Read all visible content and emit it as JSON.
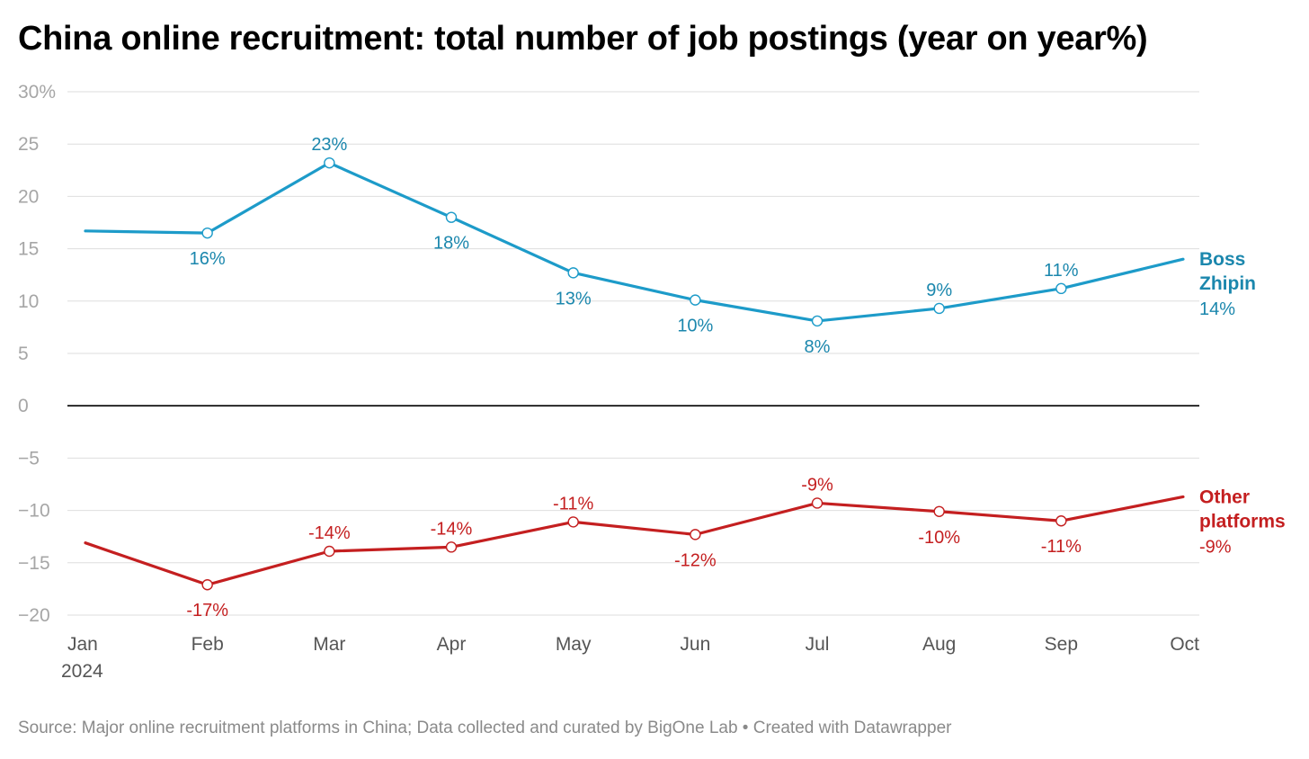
{
  "title": "China online recruitment: total number of job postings (year on year%)",
  "footer": "Source: Major online recruitment platforms in China; Data collected and curated by BigOne Lab • Created with Datawrapper",
  "chart_data": {
    "type": "line",
    "title": "China online recruitment: total number of job postings (year on year%)",
    "xlabel": "",
    "ylabel": "",
    "categories": [
      "Jan",
      "Feb",
      "Mar",
      "Apr",
      "May",
      "Jun",
      "Jul",
      "Aug",
      "Sep",
      "Oct"
    ],
    "x_year_label": "2024",
    "ylim": [
      -20,
      30
    ],
    "y_ticks": [
      30,
      25,
      20,
      15,
      10,
      5,
      0,
      -5,
      -10,
      -15,
      -20
    ],
    "y_tick_labels": [
      "30%",
      "25",
      "20",
      "15",
      "10",
      "5",
      "0",
      "−5",
      "−10",
      "−15",
      "−20"
    ],
    "grid": true,
    "legend": "inline-right",
    "series": [
      {
        "name": "Boss Zhipin",
        "name_lines": [
          "Boss",
          "Zhipin"
        ],
        "color": "#1d9bc9",
        "label_color": "#1b87ad",
        "values": [
          16.7,
          16.5,
          23.2,
          18.0,
          12.7,
          10.1,
          8.1,
          9.3,
          11.2,
          14.0
        ],
        "point_labels": [
          "",
          "16%",
          "23%",
          "18%",
          "13%",
          "10%",
          "8%",
          "9%",
          "11%",
          ""
        ],
        "end_label": "14%"
      },
      {
        "name": "Other platforms",
        "name_lines": [
          "Other",
          "platforms"
        ],
        "color": "#c41f20",
        "label_color": "#c41f20",
        "values": [
          -13.1,
          -17.1,
          -13.9,
          -13.5,
          -11.1,
          -12.3,
          -9.3,
          -10.1,
          -11.0,
          -8.7
        ],
        "point_labels": [
          "",
          "-17%",
          "-14%",
          "-14%",
          "-11%",
          "-12%",
          "-9%",
          "-10%",
          "-11%",
          ""
        ],
        "end_label": "-9%"
      }
    ]
  }
}
